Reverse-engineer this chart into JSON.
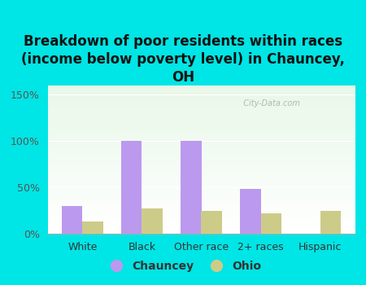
{
  "title": "Breakdown of poor residents within races\n(income below poverty level) in Chauncey,\nOH",
  "categories": [
    "White",
    "Black",
    "Other race",
    "2+ races",
    "Hispanic"
  ],
  "chauncey_values": [
    30,
    100,
    100,
    48,
    0
  ],
  "ohio_values": [
    13,
    27,
    25,
    22,
    25
  ],
  "chauncey_color": "#bb99ee",
  "ohio_color": "#cccc88",
  "background_outer": "#00e5e5",
  "yticks": [
    0,
    50,
    100,
    150
  ],
  "ytick_labels": [
    "0%",
    "50%",
    "100%",
    "150%"
  ],
  "ylim": [
    0,
    160
  ],
  "bar_width": 0.35,
  "title_fontsize": 12,
  "legend_fontsize": 10,
  "axis_fontsize": 9,
  "watermark": "  City-Data.com"
}
